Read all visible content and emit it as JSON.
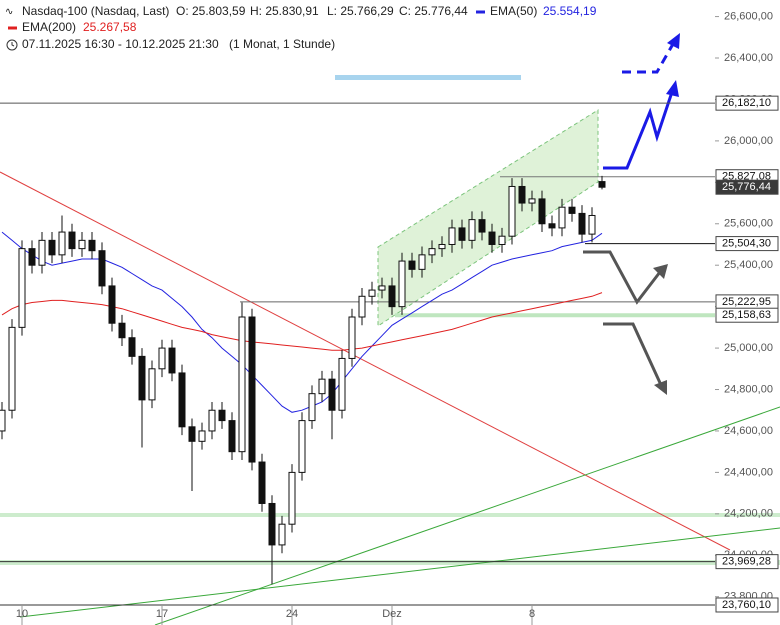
{
  "chart_data": {
    "type": "candlestick",
    "title": "Nasdaq-100 (Nasdaq, Last)",
    "quote": [
      "O: 25.803,59",
      "H: 25.830,91",
      "L: 25.766,29",
      "C: 25.776,44"
    ],
    "period": "07.11.2025 16:30 - 10.12.2025 21:30",
    "interval": "(1 Monat, 1 Stunde)",
    "categories": [
      null,
      null,
      "10",
      null,
      null,
      null,
      null,
      null,
      null,
      null,
      null,
      null,
      null,
      null,
      null,
      null,
      "17",
      null,
      null,
      null,
      null,
      null,
      null,
      null,
      null,
      null,
      null,
      null,
      null,
      "24",
      null,
      null,
      null,
      null,
      null,
      null,
      null,
      null,
      null,
      "Dez",
      null,
      null,
      null,
      null,
      null,
      null,
      null,
      null,
      null,
      null,
      null,
      null,
      null,
      "8",
      null,
      null,
      null,
      null,
      null,
      null,
      null
    ],
    "open": [
      24600,
      24700,
      25100,
      25480,
      25400,
      25520,
      25450,
      25560,
      25480,
      25520,
      25470,
      25300,
      25120,
      25050,
      24960,
      24750,
      24900,
      25000,
      24880,
      24620,
      24550,
      24600,
      24700,
      24650,
      24500,
      25150,
      24450,
      24250,
      24050,
      24150,
      24400,
      24650,
      24780,
      24850,
      24700,
      24950,
      25150,
      25250,
      25280,
      25300,
      25200,
      25420,
      25380,
      25450,
      25480,
      25500,
      25580,
      25520,
      25620,
      25560,
      25500,
      25540,
      25780,
      25700,
      25720,
      25600,
      25580,
      25680,
      25650,
      25550,
      25803.59
    ],
    "high": [
      24740,
      25140,
      25520,
      25520,
      25560,
      25560,
      25640,
      25600,
      25560,
      25560,
      25510,
      25340,
      25160,
      25090,
      25000,
      24940,
      25040,
      25040,
      24920,
      24660,
      24640,
      24740,
      24740,
      24690,
      25220,
      25190,
      24490,
      24290,
      24190,
      24440,
      24690,
      24820,
      24890,
      24890,
      24990,
      25190,
      25290,
      25320,
      25340,
      25340,
      25460,
      25460,
      25490,
      25520,
      25540,
      25620,
      25620,
      25660,
      25660,
      25600,
      25580,
      25820,
      25820,
      25760,
      25760,
      25640,
      25720,
      25720,
      25690,
      25680,
      25830.91
    ],
    "low": [
      24560,
      24660,
      25060,
      25360,
      25360,
      25410,
      25410,
      25440,
      25440,
      25430,
      25260,
      25080,
      25010,
      24920,
      24520,
      24710,
      24860,
      24840,
      24580,
      24310,
      24510,
      24560,
      24610,
      24460,
      24460,
      24410,
      24210,
      23860,
      24010,
      24110,
      24360,
      24610,
      24740,
      24560,
      24660,
      24910,
      25110,
      25210,
      25240,
      25160,
      25160,
      25340,
      25340,
      25410,
      25440,
      25460,
      25480,
      25480,
      25520,
      25460,
      25460,
      25500,
      25660,
      25660,
      25560,
      25540,
      25540,
      25610,
      25510,
      25510,
      25766.29
    ],
    "close": [
      24700,
      25100,
      25480,
      25400,
      25520,
      25450,
      25560,
      25480,
      25520,
      25470,
      25300,
      25120,
      25050,
      24960,
      24750,
      24900,
      25000,
      24880,
      24620,
      24550,
      24600,
      24700,
      24650,
      24500,
      25150,
      24450,
      24250,
      24050,
      24150,
      24400,
      24650,
      24780,
      24850,
      24700,
      24950,
      25150,
      25250,
      25280,
      25300,
      25200,
      25420,
      25380,
      25450,
      25480,
      25500,
      25580,
      25520,
      25620,
      25560,
      25500,
      25540,
      25780,
      25700,
      25720,
      25600,
      25580,
      25680,
      25650,
      25550,
      25640,
      25776.44
    ],
    "series": [
      {
        "name": "EMA(50)",
        "color": "#2323e0",
        "last_label": "25.554,19",
        "values": [
          25560,
          25520,
          25480,
          25450,
          25420,
          25400,
          25410,
          25420,
          25430,
          25430,
          25430,
          25410,
          25390,
          25360,
          25330,
          25300,
          25280,
          25240,
          25200,
          25150,
          25090,
          25050,
          25000,
          24960,
          24920,
          24870,
          24820,
          24770,
          24720,
          24690,
          24700,
          24720,
          24740,
          24780,
          24840,
          24900,
          24960,
          25010,
          25060,
          25110,
          25140,
          25170,
          25200,
          25230,
          25260,
          25280,
          25310,
          25340,
          25370,
          25400,
          25415,
          25430,
          25440,
          25450,
          25460,
          25470,
          25490,
          25500,
          25510,
          25520,
          25554.19
        ]
      },
      {
        "name": "EMA(200)",
        "color": "#e02020",
        "last_label": "25.267,58",
        "values": [
          25160,
          25190,
          25210,
          25220,
          25225,
          25230,
          25230,
          25225,
          25220,
          25215,
          25210,
          25200,
          25190,
          25175,
          25160,
          25145,
          25130,
          25115,
          25100,
          25090,
          25080,
          25065,
          25055,
          25045,
          25035,
          25030,
          25025,
          25020,
          25015,
          25010,
          25005,
          25000,
          24995,
          24990,
          24990,
          24995,
          25000,
          25010,
          25020,
          25030,
          25040,
          25050,
          25060,
          25070,
          25080,
          25090,
          25105,
          25120,
          25135,
          25150,
          25160,
          25170,
          25180,
          25190,
          25200,
          25210,
          25220,
          25230,
          25240,
          25250,
          25267.58
        ]
      }
    ],
    "ylim": [
      23760,
      26680
    ],
    "yticks": [
      {
        "value": 26600,
        "label": "26,600,00"
      },
      {
        "value": 26400,
        "label": "26,400,00"
      },
      {
        "value": 26200,
        "label": "26,200,00"
      },
      {
        "value": 26000,
        "label": "26,000,00"
      },
      {
        "value": 25800,
        "label": "25,800,00"
      },
      {
        "value": 25600,
        "label": "25,600,00"
      },
      {
        "value": 25400,
        "label": "25,400,00"
      },
      {
        "value": 25200,
        "label": "25,200,00"
      },
      {
        "value": 25000,
        "label": "25,000,00"
      },
      {
        "value": 24800,
        "label": "24,800,00"
      },
      {
        "value": 24600,
        "label": "24,600,00"
      },
      {
        "value": 24400,
        "label": "24,400,00"
      },
      {
        "value": 24200,
        "label": "24,200,00"
      },
      {
        "value": 24000,
        "label": "24,000,00"
      },
      {
        "value": 23800,
        "label": "23,800,00"
      }
    ],
    "levels": [
      {
        "value": 26182.1,
        "label": "26,182,10"
      },
      {
        "value": 25827.08,
        "label": "25,827,08"
      },
      {
        "value": 25776.44,
        "label": "25,776,44"
      },
      {
        "value": 25504.3,
        "label": "25,504,30"
      },
      {
        "value": 25222.95,
        "label": "25,222,95"
      },
      {
        "value": 25158.63,
        "label": "25,158,63"
      },
      {
        "value": 23969.28,
        "label": "23,969,28"
      },
      {
        "value": 23760.1,
        "label": "23,760,10"
      }
    ]
  }
}
